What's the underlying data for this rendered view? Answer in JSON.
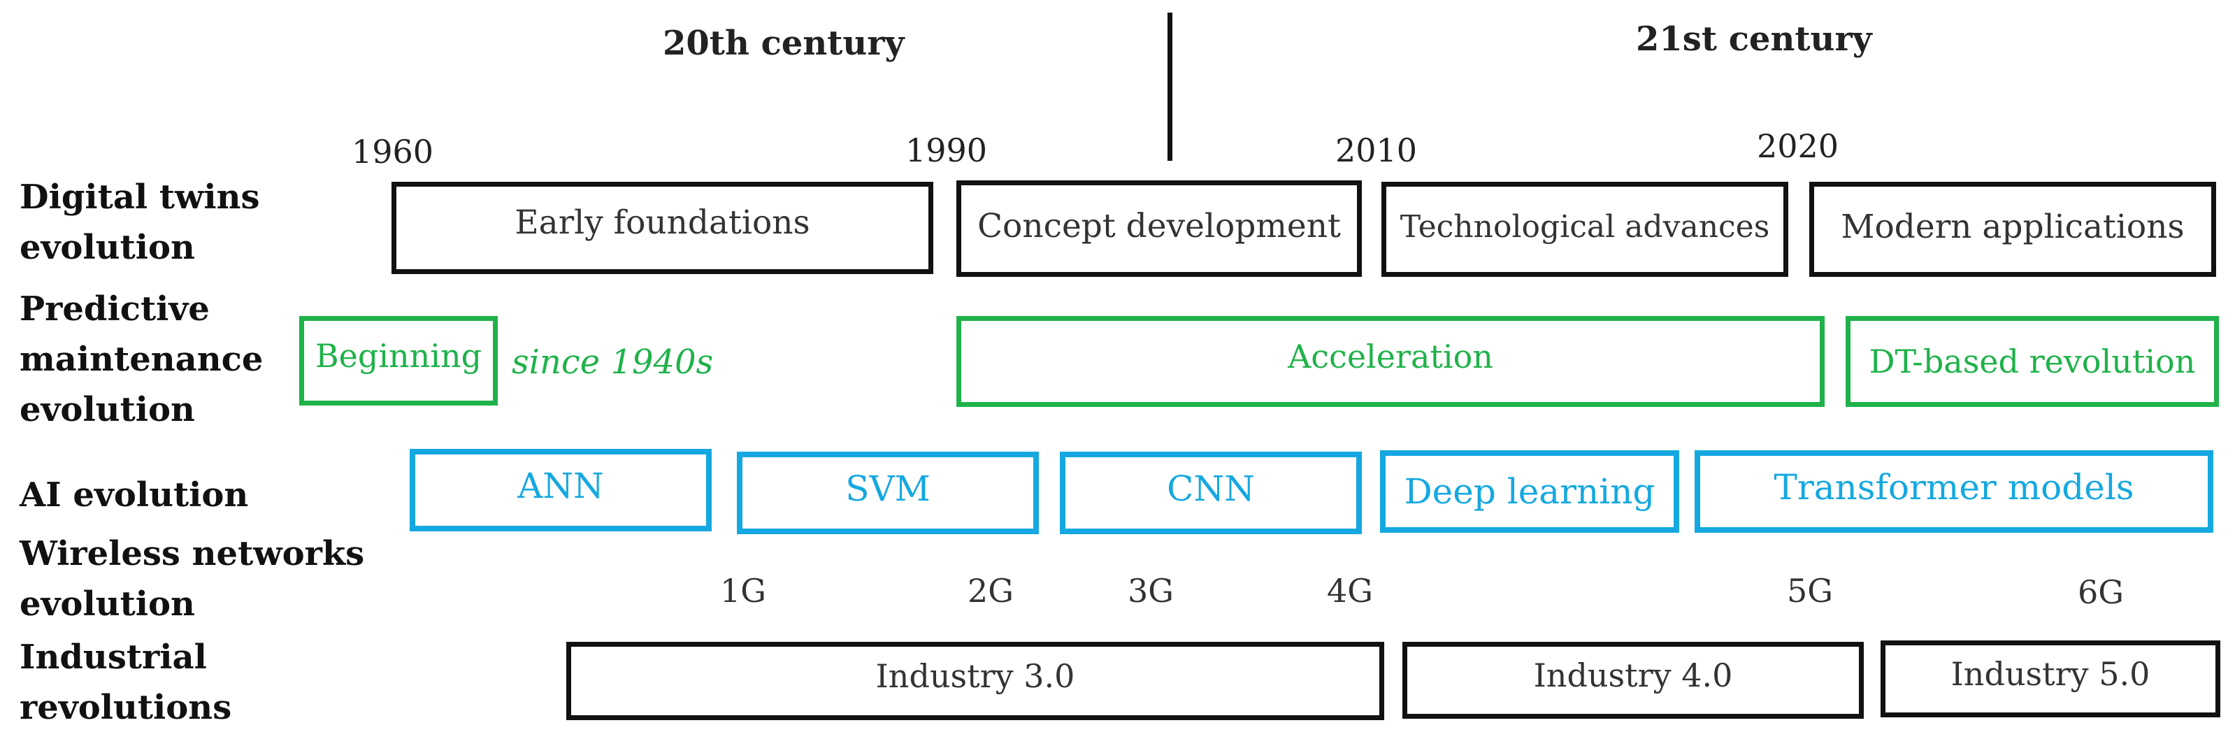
{
  "centuries": {
    "left": "20th century",
    "right": "21st century"
  },
  "years": {
    "y1960": "1960",
    "y1990": "1990",
    "y2010": "2010",
    "y2020": "2020"
  },
  "rows": {
    "digital_twins": {
      "label_line1": "Digital twins",
      "label_line2": "evolution"
    },
    "predictive_maintenance": {
      "label_line1": "Predictive",
      "label_line2": "maintenance",
      "label_line3": "evolution"
    },
    "ai": {
      "label": "AI evolution"
    },
    "wireless": {
      "label_line1": "Wireless networks",
      "label_line2": "evolution"
    },
    "industrial": {
      "label_line1": "Industrial",
      "label_line2": "revolutions"
    }
  },
  "digital_twins": {
    "early_foundations": "Early foundations",
    "concept_development": "Concept development",
    "technological_advances": "Technological advances",
    "modern_applications": "Modern applications"
  },
  "predictive_maintenance": {
    "beginning": "Beginning",
    "since_note": "since 1940s",
    "acceleration": "Acceleration",
    "dt_revolution": "DT-based revolution"
  },
  "ai": {
    "ann": "ANN",
    "svm": "SVM",
    "cnn": "CNN",
    "deep_learning": "Deep learning",
    "transformer": "Transformer models"
  },
  "wireless": {
    "g1": "1G",
    "g2": "2G",
    "g3": "3G",
    "g4": "4G",
    "g5": "5G",
    "g6": "6G"
  },
  "industrial": {
    "i3": "Industry 3.0",
    "i4": "Industry 4.0",
    "i5": "Industry 5.0"
  },
  "colors": {
    "black": "#111111",
    "green": "#1fb24a",
    "blue": "#15a8e0"
  }
}
